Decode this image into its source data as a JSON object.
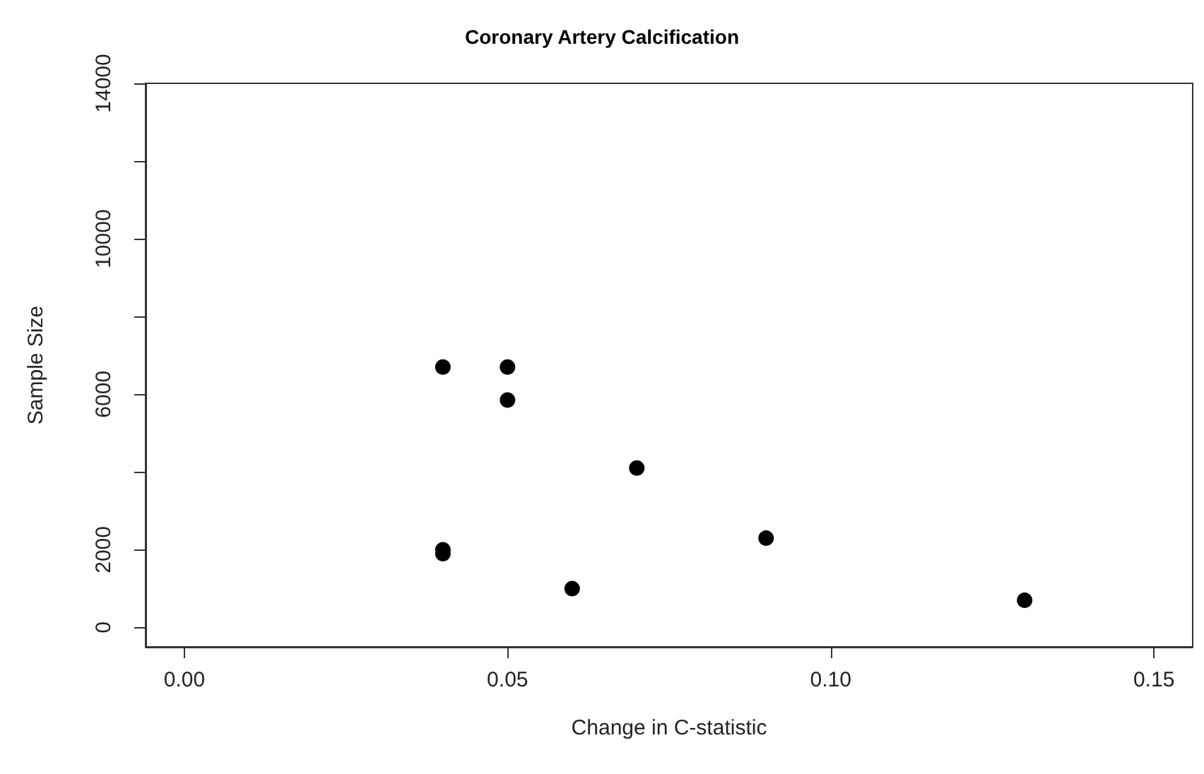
{
  "chart_data": {
    "type": "scatter",
    "title": "Coronary Artery Calcification",
    "xlabel": "Change in C-statistic",
    "ylabel": "Sample Size",
    "x": [
      0.04,
      0.05,
      0.05,
      0.07,
      0.04,
      0.04,
      0.06,
      0.09,
      0.13
    ],
    "values": [
      6700,
      6700,
      5850,
      4100,
      2000,
      1900,
      1000,
      2300,
      700
    ],
    "color": "#000000",
    "marker": "circle",
    "xlim": [
      -0.006,
      0.156
    ],
    "xticks": [
      {
        "value": 0,
        "label": "0.00"
      },
      0.05,
      {
        "value": 0.1,
        "label": "0.10"
      },
      0.15
    ],
    "ylim": [
      -500,
      14000
    ],
    "yticks": [
      0,
      2000,
      {
        "value": 4000,
        "label": null
      },
      6000,
      {
        "value": 8000,
        "label": null
      },
      10000,
      {
        "value": 12000,
        "label": null
      },
      14000
    ],
    "grid": false
  }
}
